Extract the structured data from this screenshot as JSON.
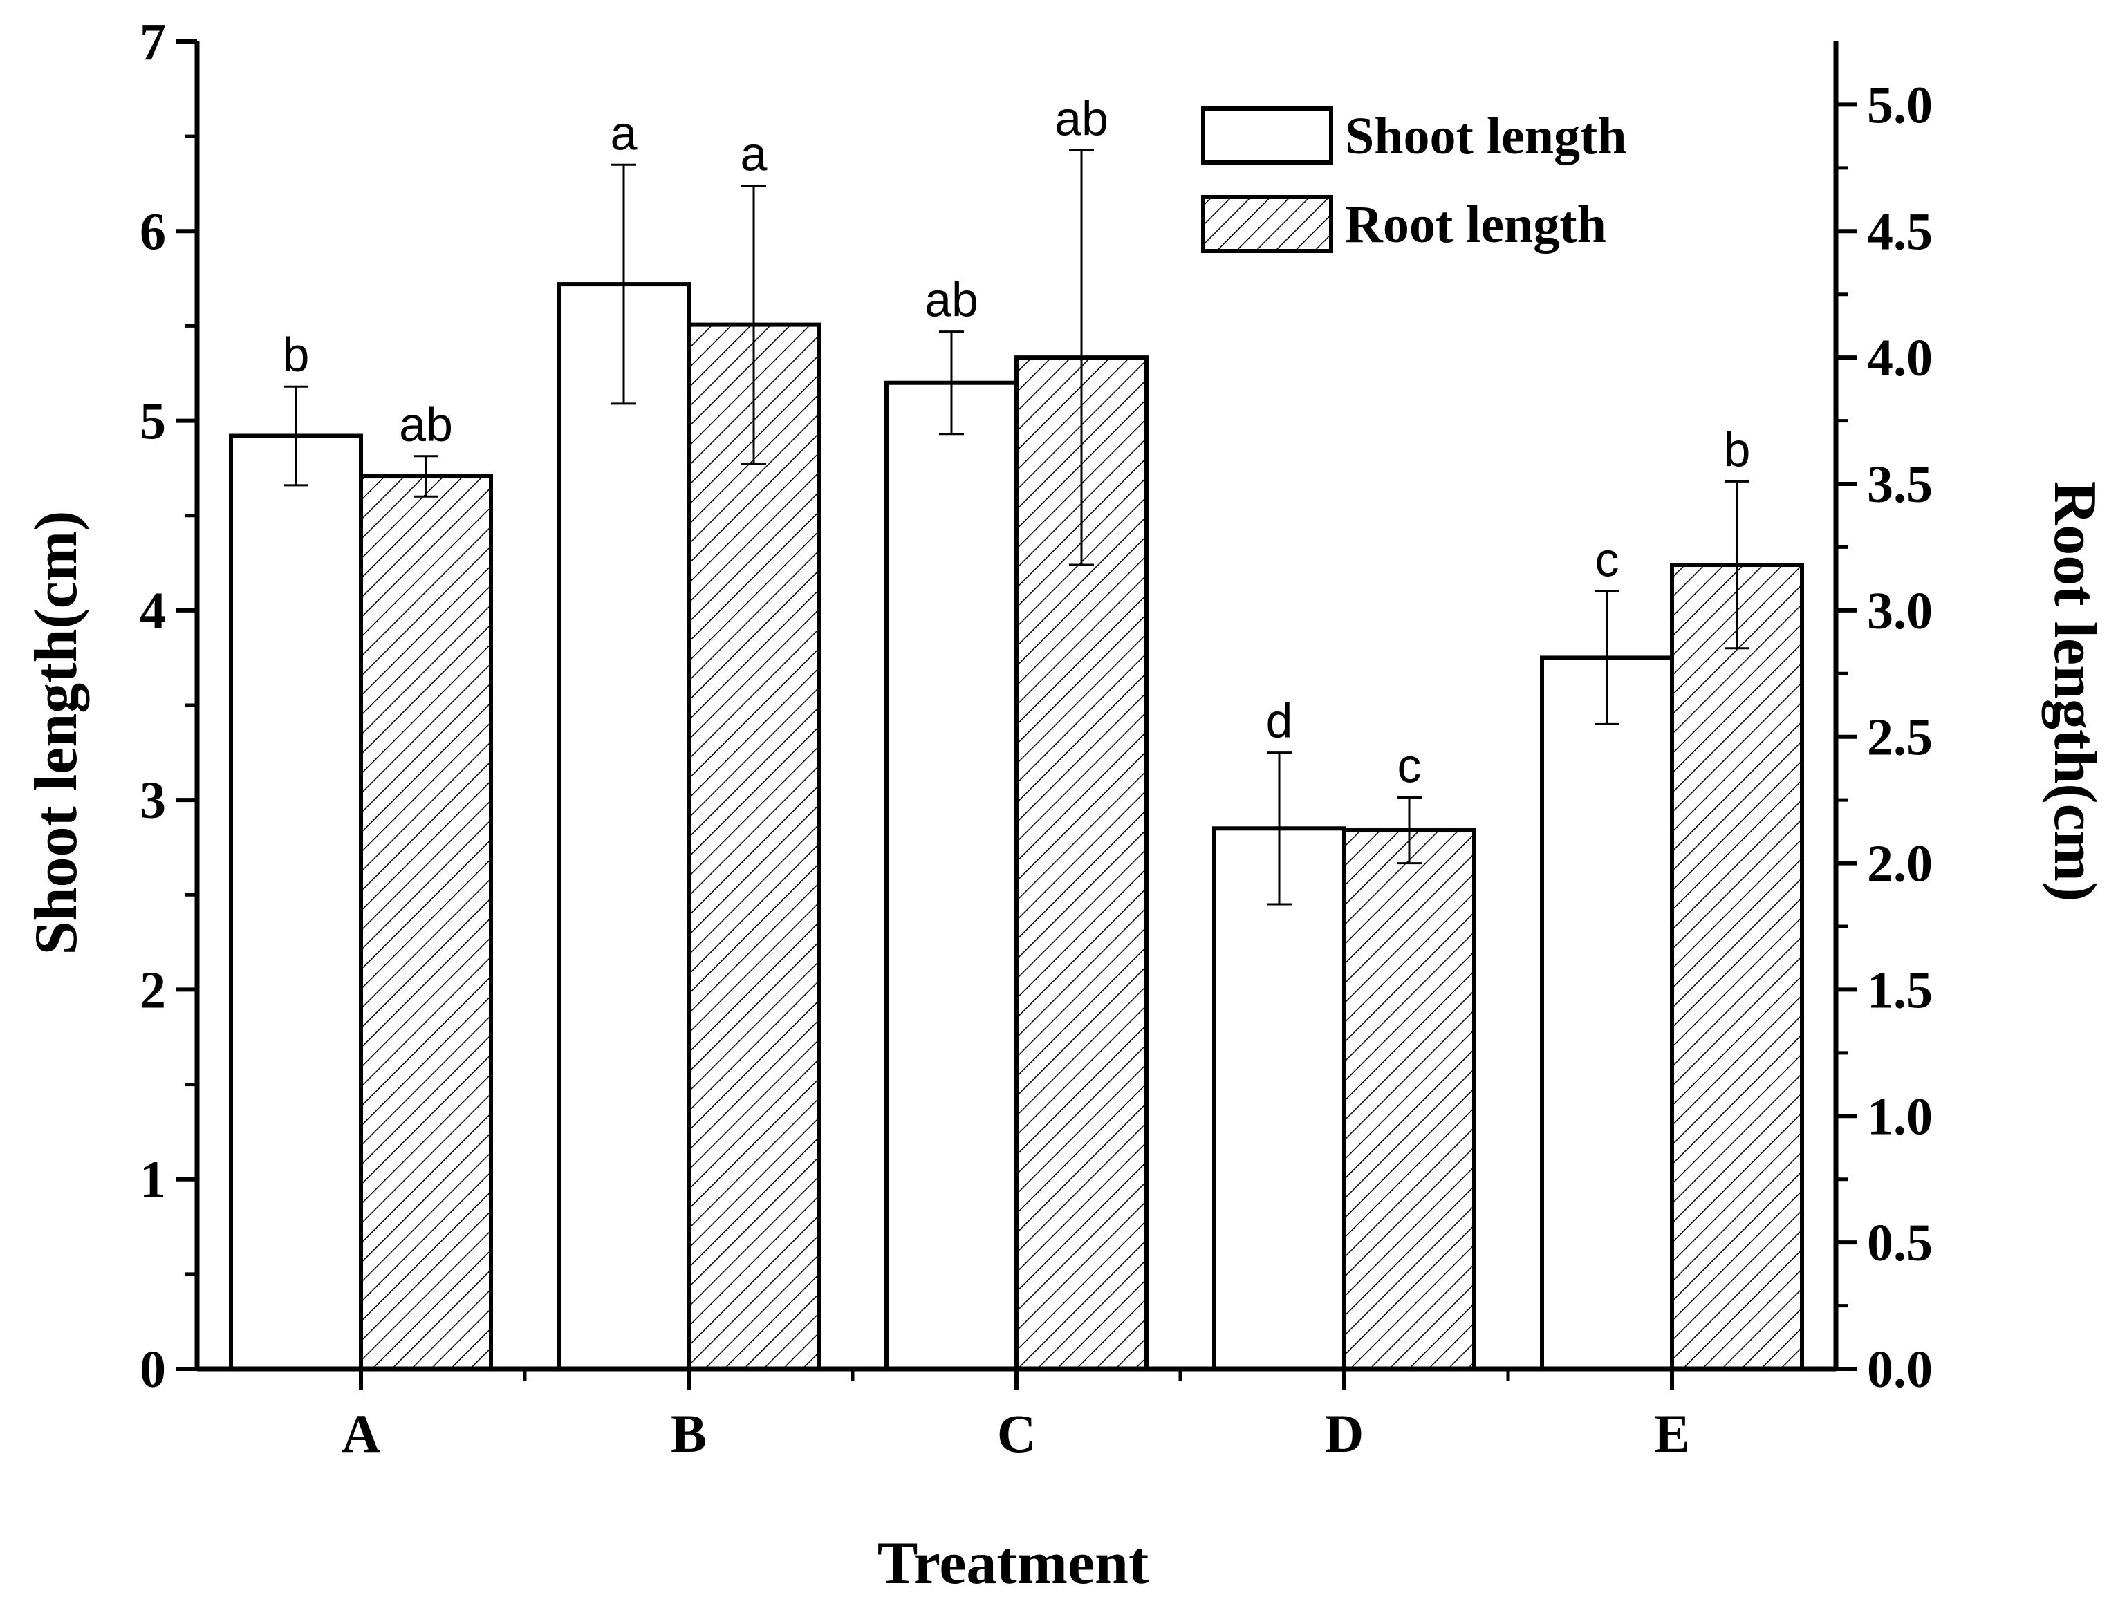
{
  "chart_data": {
    "type": "bar",
    "title": "",
    "xlabel": "Treatment",
    "ylabel": "Shoot length(cm)",
    "y2label": "Root length(cm)",
    "categories": [
      "A",
      "B",
      "C",
      "D",
      "E"
    ],
    "ylim": [
      0,
      7
    ],
    "y2lim": [
      0,
      5.25
    ],
    "yticks": [
      "0",
      "1",
      "2",
      "3",
      "4",
      "5",
      "6",
      "7"
    ],
    "y2ticks": [
      "0.0",
      "0.5",
      "1.0",
      "1.5",
      "2.0",
      "2.5",
      "3.0",
      "3.5",
      "4.0",
      "4.5",
      "5.0"
    ],
    "series": [
      {
        "name": "Shoot length",
        "axis": "left",
        "pattern": "open",
        "values": [
          4.92,
          5.72,
          5.2,
          2.85,
          3.75
        ],
        "errors": [
          0.26,
          0.63,
          0.27,
          0.4,
          0.35
        ],
        "labels": [
          "b",
          "a",
          "ab",
          "d",
          "c"
        ]
      },
      {
        "name": "Root length",
        "axis": "right",
        "pattern": "hatched",
        "values": [
          3.53,
          4.13,
          4.0,
          2.13,
          3.18
        ],
        "errors": [
          0.08,
          0.55,
          0.82,
          0.13,
          0.33
        ],
        "labels": [
          "ab",
          "a",
          "ab",
          "c",
          "b"
        ]
      }
    ],
    "legend": {
      "position": "top-right"
    },
    "grid": false
  }
}
